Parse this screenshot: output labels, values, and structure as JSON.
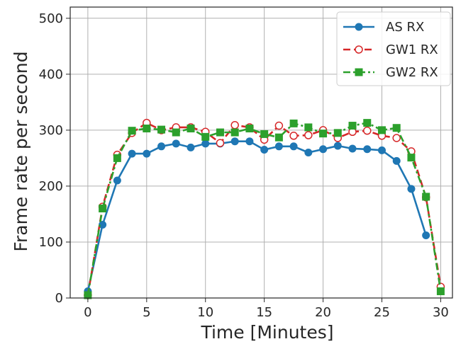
{
  "chart_data": {
    "type": "line",
    "xlabel": "Time [Minutes]",
    "ylabel": "Frame rate per second",
    "xlim": [
      -1.5,
      31
    ],
    "ylim": [
      0,
      520
    ],
    "xticks": [
      0,
      5,
      10,
      15,
      20,
      25,
      30
    ],
    "yticks": [
      0,
      100,
      200,
      300,
      400,
      500
    ],
    "xtick_labels": [
      "0",
      "5",
      "10",
      "15",
      "20",
      "25",
      "30"
    ],
    "ytick_labels": [
      "0",
      "100",
      "200",
      "300",
      "400",
      "500"
    ],
    "grid": true,
    "legend_position": "top-right",
    "series": [
      {
        "name": "AS RX",
        "color": "#1f77b4",
        "linestyle": "solid",
        "marker": "circle-filled",
        "x": [
          0,
          1.25,
          2.5,
          3.75,
          5,
          6.25,
          7.5,
          8.75,
          10,
          11.25,
          12.5,
          13.75,
          15,
          16.25,
          17.5,
          18.75,
          20,
          21.25,
          22.5,
          23.75,
          25,
          26.25,
          27.5,
          28.75
        ],
        "y": [
          12,
          131,
          210,
          258,
          258,
          271,
          276,
          269,
          276,
          276,
          280,
          280,
          265,
          271,
          271,
          260,
          266,
          272,
          267,
          266,
          264,
          245,
          195,
          112
        ]
      },
      {
        "name": "GW1 RX",
        "color": "#d62728",
        "linestyle": "dashed",
        "marker": "circle-open",
        "x": [
          0,
          1.25,
          2.5,
          3.75,
          5,
          6.25,
          7.5,
          8.75,
          10,
          11.25,
          12.5,
          13.75,
          15,
          16.25,
          17.5,
          18.75,
          20,
          21.25,
          22.5,
          23.75,
          25,
          26.25,
          27.5,
          28.75,
          30
        ],
        "y": [
          5,
          163,
          256,
          295,
          313,
          300,
          305,
          305,
          297,
          277,
          309,
          305,
          283,
          308,
          290,
          291,
          300,
          286,
          297,
          299,
          290,
          286,
          262,
          180,
          20
        ]
      },
      {
        "name": "GW2 RX",
        "color": "#2ca02c",
        "linestyle": "dashdot",
        "marker": "square-filled",
        "x": [
          0,
          1.25,
          2.5,
          3.75,
          5,
          6.25,
          7.5,
          8.75,
          10,
          11.25,
          12.5,
          13.75,
          15,
          16.25,
          17.5,
          18.75,
          20,
          21.25,
          22.5,
          23.75,
          25,
          26.25,
          27.5,
          28.75,
          30
        ],
        "y": [
          5,
          160,
          250,
          299,
          303,
          301,
          296,
          303,
          288,
          296,
          296,
          303,
          293,
          287,
          312,
          305,
          294,
          295,
          308,
          313,
          300,
          304,
          251,
          181,
          12
        ]
      }
    ]
  }
}
